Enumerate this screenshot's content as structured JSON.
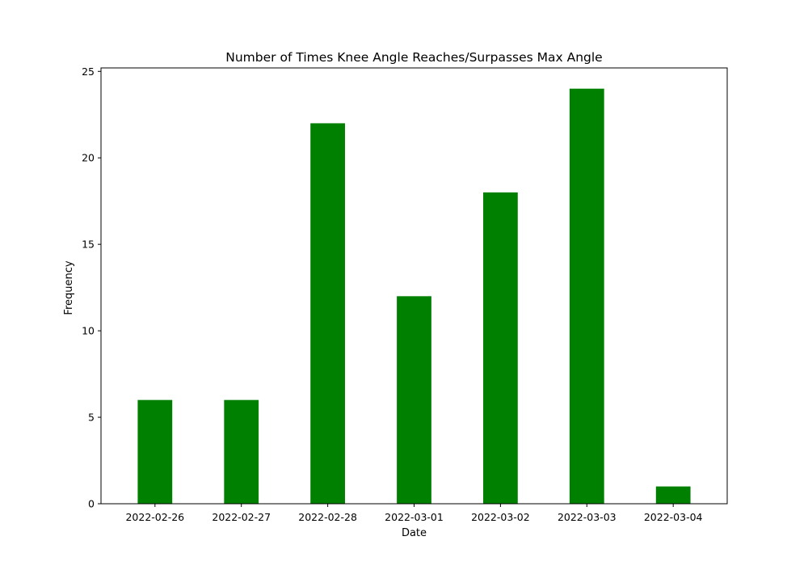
{
  "chart_data": {
    "type": "bar",
    "title": "Number of Times Knee Angle Reaches/Surpasses Max Angle",
    "xlabel": "Date",
    "ylabel": "Frequency",
    "categories": [
      "2022-02-26",
      "2022-02-27",
      "2022-02-28",
      "2022-03-01",
      "2022-03-02",
      "2022-03-03",
      "2022-03-04"
    ],
    "values": [
      6,
      6,
      22,
      12,
      18,
      24,
      1
    ],
    "ylim": [
      0,
      25.2
    ],
    "yticks": [
      0,
      5,
      10,
      15,
      20,
      25
    ],
    "grid": false,
    "bar_color": "#008000"
  }
}
